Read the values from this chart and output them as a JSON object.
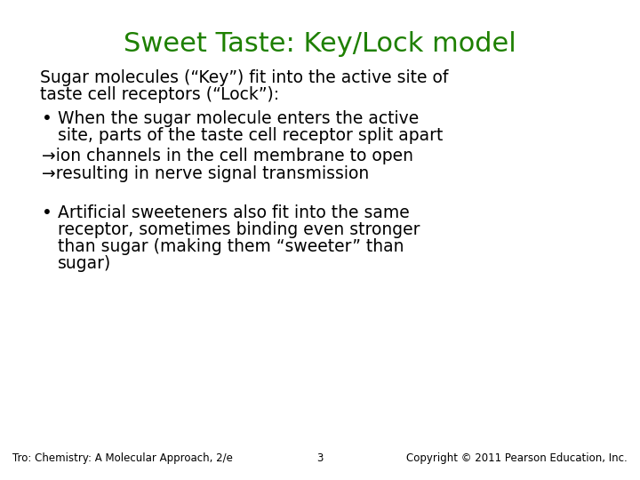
{
  "title": "Sweet Taste: Key/Lock model",
  "title_color": "#1E8000",
  "title_fontsize": 22,
  "background_color": "#FFFFFF",
  "footer_left": "Tro: Chemistry: A Molecular Approach, 2/e",
  "footer_center": "3",
  "footer_right": "Copyright © 2011 Pearson Education, Inc.",
  "footer_fontsize": 8.5,
  "body_fontsize": 13.5,
  "body_color": "#000000"
}
